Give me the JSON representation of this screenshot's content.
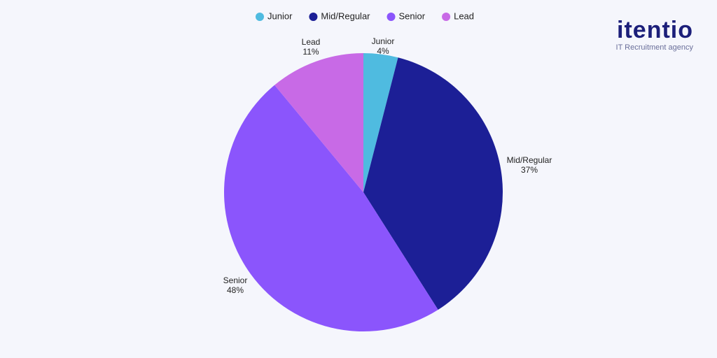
{
  "chart_data": {
    "type": "pie",
    "categories": [
      "Junior",
      "Mid/Regular",
      "Senior",
      "Lead"
    ],
    "values": [
      4,
      37,
      48,
      11
    ],
    "value_labels": [
      "4%",
      "37%",
      "48%",
      "11%"
    ],
    "colors": [
      "#4fbbe0",
      "#1c1f96",
      "#8b55fc",
      "#c86ae6"
    ],
    "legend": "top"
  },
  "logo": {
    "name": "itentio",
    "tagline": "IT Recruitment agency"
  }
}
